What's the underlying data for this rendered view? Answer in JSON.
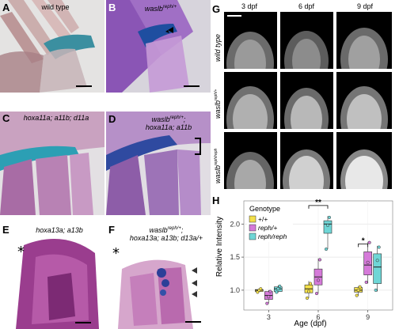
{
  "panels": {
    "A": {
      "label": "A",
      "genotype": "wild type"
    },
    "B": {
      "label": "B",
      "genotype_gene": "waslb",
      "genotype_sup": "reph/+"
    },
    "C": {
      "label": "C",
      "genotype": "hoxa11a; a11b; d11a"
    },
    "D": {
      "label": "D",
      "genotype_line1_gene": "waslb",
      "genotype_line1_sup": "reph/+",
      "genotype_line2": "hoxa11a; a11b"
    },
    "E": {
      "label": "E",
      "genotype": "hoxa13a; a13b",
      "marker": "*"
    },
    "F": {
      "label": "F",
      "genotype_line1_gene": "waslb",
      "genotype_line1_sup": "reph/+",
      "genotype_line2": "hoxa13a; a13b; d13a/+",
      "marker": "*"
    },
    "G": {
      "label": "G",
      "columns": [
        "3 dpf",
        "6 dpf",
        "9 dpf"
      ],
      "rows": [
        {
          "text": "wild type"
        },
        {
          "gene": "waslb",
          "sup": "reph/+"
        },
        {
          "gene": "waslb",
          "sup": "reph/reph"
        }
      ]
    },
    "H": {
      "label": "H"
    }
  },
  "colors": {
    "plus_plus": "#f3e04a",
    "reph_plus": "#d57ad9",
    "reph_reph": "#6fd6d6"
  },
  "chart_data": {
    "type": "box",
    "title": "",
    "xlabel": "Age (dpf)",
    "ylabel": "Relative Intensity",
    "ylim": [
      0.7,
      2.35
    ],
    "yticks": [
      1.0,
      1.5,
      2.0
    ],
    "ytick_labels": [
      "1.0",
      "1.5",
      "2.0"
    ],
    "categories": [
      "3",
      "6",
      "9"
    ],
    "grid": true,
    "legend": {
      "title": "Genotype",
      "placement": "top-left"
    },
    "series": [
      {
        "name": "+/+",
        "color_key": "plus_plus",
        "boxes": [
          {
            "q1": 0.98,
            "median": 1.0,
            "q3": 1.01,
            "lo": 0.97,
            "hi": 1.02,
            "points": [
              0.97,
              1.0,
              1.02
            ]
          },
          {
            "q1": 0.96,
            "median": 1.02,
            "q3": 1.08,
            "lo": 0.88,
            "hi": 1.14,
            "points": [
              0.88,
              0.98,
              1.1
            ]
          },
          {
            "q1": 0.97,
            "median": 1.0,
            "q3": 1.04,
            "lo": 0.92,
            "hi": 1.06,
            "points": [
              0.92,
              1.0,
              1.05
            ]
          }
        ]
      },
      {
        "name": "reph/+",
        "color_key": "reph_plus",
        "boxes": [
          {
            "q1": 0.86,
            "median": 0.92,
            "q3": 0.98,
            "lo": 0.8,
            "hi": 1.0,
            "points": [
              0.8,
              0.9,
              0.98
            ]
          },
          {
            "q1": 1.08,
            "median": 1.2,
            "q3": 1.32,
            "lo": 0.95,
            "hi": 1.48,
            "points": [
              0.95,
              1.15,
              1.46
            ]
          },
          {
            "q1": 1.23,
            "median": 1.38,
            "q3": 1.58,
            "lo": 1.1,
            "hi": 1.73,
            "points": [
              1.12,
              1.42,
              1.72
            ]
          }
        ]
      },
      {
        "name": "reph/reph",
        "color_key": "reph_reph",
        "boxes": [
          {
            "q1": 0.98,
            "median": 1.02,
            "q3": 1.05,
            "lo": 0.96,
            "hi": 1.07,
            "points": [
              0.97,
              1.02,
              1.06
            ]
          },
          {
            "q1": 1.86,
            "median": 2.0,
            "q3": 2.05,
            "lo": 1.62,
            "hi": 2.12,
            "points": [
              1.62,
              1.98,
              2.1
            ]
          },
          {
            "q1": 1.1,
            "median": 1.35,
            "q3": 1.55,
            "lo": 0.98,
            "hi": 1.67,
            "points": [
              1.0,
              1.45,
              1.65
            ]
          }
        ]
      }
    ],
    "significance": [
      {
        "category": "6",
        "from_series": 0,
        "to_series": 2,
        "y": 2.28,
        "label": "**"
      },
      {
        "category": "9",
        "from_series": 0,
        "to_series": 1,
        "y": 1.7,
        "label": "*"
      }
    ]
  }
}
